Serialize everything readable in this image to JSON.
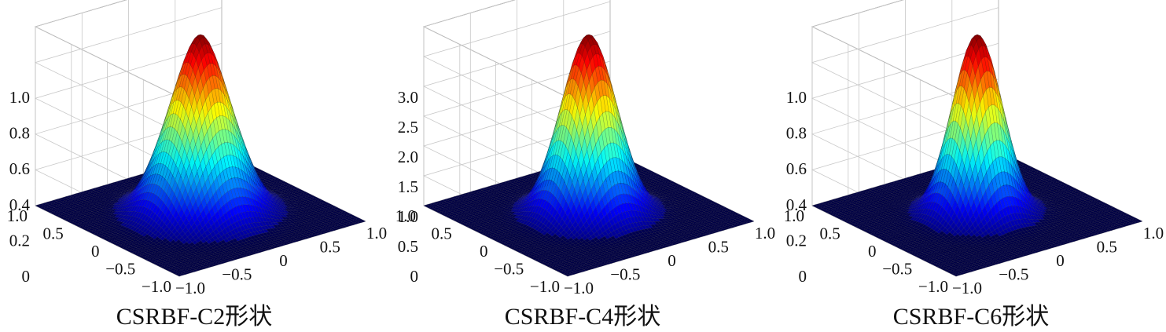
{
  "chart_data": [
    {
      "type": "surface",
      "caption": "CSRBF-C2形状",
      "z_ticks": [
        "1.0",
        "0.8",
        "0.6",
        "0.4",
        "0.2",
        "0"
      ],
      "zlim": [
        0,
        1.0
      ],
      "peak": 1.0,
      "x_ticks": [
        "1.0",
        "0.5",
        "0",
        "−0.5",
        "−1.0"
      ],
      "y_ticks": [
        "−1.0",
        "−0.5",
        "0",
        "0.5",
        "1.0"
      ],
      "xlim": [
        -1.0,
        1.0
      ],
      "ylim": [
        -1.0,
        1.0
      ],
      "colormap": "jet",
      "grid": true
    },
    {
      "type": "surface",
      "caption": "CSRBF-C4形状",
      "z_ticks": [
        "3.0",
        "2.5",
        "2.0",
        "1.5",
        "1.0",
        "0.5",
        "0"
      ],
      "zlim": [
        0,
        3.0
      ],
      "peak": 3.0,
      "x_ticks": [
        "1.0",
        "0.5",
        "0",
        "−0.5",
        "−1.0"
      ],
      "y_ticks": [
        "−1.0",
        "−0.5",
        "0",
        "0.5",
        "1.0"
      ],
      "xlim": [
        -1.0,
        1.0
      ],
      "ylim": [
        -1.0,
        1.0
      ],
      "colormap": "jet",
      "grid": true
    },
    {
      "type": "surface",
      "caption": "CSRBF-C6形状",
      "z_ticks": [
        "1.0",
        "0.8",
        "0.6",
        "0.4",
        "0.2",
        "0"
      ],
      "zlim": [
        0,
        1.0
      ],
      "peak": 1.0,
      "x_ticks": [
        "1.0",
        "0.5",
        "0",
        "−0.5",
        "−1.0"
      ],
      "y_ticks": [
        "−1.0",
        "−0.5",
        "0",
        "0.5",
        "1.0"
      ],
      "xlim": [
        -1.0,
        1.0
      ],
      "ylim": [
        -1.0,
        1.0
      ],
      "colormap": "jet",
      "grid": true
    }
  ]
}
